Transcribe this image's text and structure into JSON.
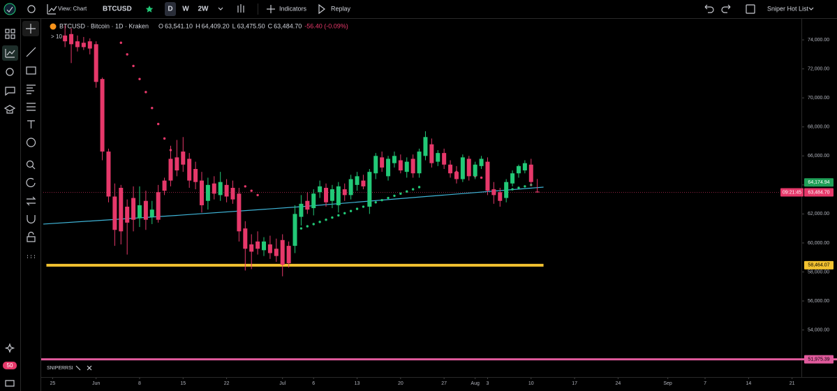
{
  "toolbar": {
    "view": "View: Chart",
    "symbol": "BTCUSD",
    "intervals": [
      "D",
      "W",
      "2W"
    ],
    "indicators": "Indicators",
    "replay": "Replay",
    "watchlist": "Sniper Hot List"
  },
  "sidebar": {
    "badge": "50"
  },
  "legend": {
    "title": "BTCUSD · Bitcoin · 1D · Kraken",
    "collapse": "10",
    "ohlc": [
      {
        "key": "O",
        "value": "63,541.10"
      },
      {
        "key": "H",
        "value": "64,409.20"
      },
      {
        "key": "L",
        "value": "63,475.50"
      },
      {
        "key": "C",
        "value": "63,484.70"
      }
    ],
    "change": "-56.40 (-0.09%)"
  },
  "pane": {
    "title": "SNIPERRSI"
  },
  "chart_data": {
    "type": "candlestick",
    "up_color": "#22c977",
    "down_color": "#e6386a",
    "x": [
      2,
      3,
      4,
      5,
      6,
      7,
      8,
      9,
      10,
      11,
      12,
      13,
      14,
      15,
      16,
      17,
      18,
      19,
      20,
      21,
      22,
      23,
      24,
      25,
      26,
      27,
      28,
      29,
      30,
      31,
      32,
      33,
      34,
      35,
      36,
      37,
      38,
      39,
      40,
      41,
      42,
      43,
      44,
      45,
      46,
      47,
      48,
      49,
      50,
      51,
      52,
      53,
      54,
      55,
      56,
      57,
      58,
      59,
      60,
      61,
      62,
      63,
      64,
      65,
      66,
      67,
      68,
      69,
      70,
      71,
      72,
      73,
      74,
      75,
      76,
      77,
      78
    ],
    "open": [
      74300,
      74400,
      73900,
      73800,
      73900,
      73700,
      71300,
      66300,
      63200,
      63800,
      62500,
      63100,
      61700,
      62900,
      61800,
      63500,
      64300,
      65800,
      65900,
      66300,
      65800,
      65100,
      64300,
      62900,
      64100,
      63300,
      64000,
      63800,
      63400,
      61000,
      59900,
      60100,
      59500,
      59900,
      59600,
      60200,
      59800,
      59800,
      61800,
      62900,
      62400,
      63500,
      63800,
      62900,
      62600,
      63700,
      63300,
      64000,
      64300,
      62500,
      64800,
      65900,
      64600,
      65500,
      65700,
      64900,
      65800,
      64800,
      66000,
      66800,
      65600,
      66200,
      65400,
      64900,
      64400,
      65800,
      64600,
      65300,
      65600,
      63700,
      63500,
      63100,
      64100,
      64800,
      65000,
      65400,
      63541.1
    ],
    "high": [
      75000,
      74800,
      74300,
      74200,
      74100,
      73900,
      71400,
      66500,
      64100,
      64000,
      63000,
      63900,
      63900,
      63600,
      62900,
      64000,
      64500,
      66700,
      67100,
      67300,
      66200,
      65600,
      64900,
      64500,
      64600,
      64900,
      64400,
      64300,
      63800,
      61500,
      60600,
      60800,
      60400,
      60500,
      60300,
      60600,
      60100,
      62600,
      63300,
      63500,
      63700,
      64300,
      64100,
      64000,
      64200,
      64100,
      64700,
      64900,
      64700,
      65100,
      66200,
      66300,
      66000,
      66300,
      66100,
      65900,
      66100,
      66500,
      67700,
      67200,
      66400,
      66500,
      65700,
      65300,
      66100,
      66000,
      65600,
      66000,
      65900,
      64200,
      63800,
      64400,
      65000,
      65400,
      65700,
      65800,
      64409.2
    ],
    "low": [
      73500,
      72400,
      73200,
      73300,
      73000,
      70700,
      65700,
      62800,
      59800,
      59900,
      59200,
      60800,
      61100,
      60900,
      61300,
      61400,
      63300,
      63900,
      64600,
      64900,
      63800,
      63700,
      62100,
      62300,
      63000,
      62900,
      62800,
      62700,
      60100,
      58100,
      58200,
      59200,
      59100,
      58900,
      58700,
      57700,
      58300,
      59300,
      61200,
      62000,
      61900,
      63100,
      62500,
      62400,
      62100,
      62900,
      63000,
      63600,
      63700,
      62000,
      64400,
      64900,
      64300,
      65200,
      64800,
      64500,
      64500,
      64500,
      65700,
      65200,
      65300,
      65100,
      64500,
      64100,
      64200,
      64300,
      64400,
      65100,
      63300,
      62700,
      62500,
      62800,
      63900,
      64500,
      64800,
      63900,
      63475.5
    ],
    "close": [
      73900,
      73700,
      73500,
      73500,
      73400,
      71100,
      66300,
      63200,
      60900,
      60800,
      61400,
      61600,
      62600,
      61600,
      62300,
      61600,
      63600,
      64300,
      65000,
      65400,
      64300,
      64200,
      62600,
      64000,
      63400,
      64200,
      63200,
      63000,
      60800,
      59600,
      59400,
      59600,
      60100,
      59300,
      59100,
      58500,
      58600,
      62000,
      62700,
      62300,
      63400,
      63900,
      62800,
      63700,
      63900,
      63300,
      64400,
      64600,
      63900,
      64900,
      66000,
      65200,
      65800,
      66000,
      65000,
      65600,
      64800,
      66300,
      67300,
      65500,
      66200,
      65400,
      64800,
      64400,
      65900,
      64600,
      65400,
      65800,
      63600,
      63300,
      62900,
      64200,
      64800,
      65300,
      65500,
      64200,
      63484.7
    ],
    "overlays": [
      {
        "type": "line",
        "color": "#3fb5d8",
        "x": [
          -1.5,
          20,
          40,
          60,
          79
        ],
        "values": [
          61300,
          61900,
          62500,
          63200,
          63850
        ]
      },
      {
        "type": "scatter",
        "color": "#e6386a",
        "x": [
          11,
          12,
          13,
          14,
          15,
          16,
          17,
          18,
          19,
          31,
          32,
          33,
          64,
          65,
          66,
          67,
          68,
          69
        ],
        "values": [
          73800,
          73000,
          72200,
          71300,
          70400,
          69300,
          68200,
          67200,
          66400,
          63900,
          63600,
          63300,
          65000,
          64900,
          64800,
          64700,
          64600,
          64500
        ]
      },
      {
        "type": "scatter",
        "color": "#22c977",
        "x": [
          40,
          41,
          42,
          43,
          44,
          45,
          46,
          47,
          48,
          49,
          50,
          51,
          52,
          53,
          54,
          55,
          56,
          57,
          58,
          59,
          74,
          75,
          76,
          77
        ],
        "values": [
          61000,
          61150,
          61300,
          61450,
          61600,
          61750,
          61900,
          62050,
          62200,
          62350,
          62500,
          62650,
          62800,
          62950,
          63100,
          63250,
          63400,
          63550,
          63700,
          63850,
          63700,
          63800,
          63900,
          64000
        ]
      }
    ],
    "levels": [
      {
        "value": 58464.07,
        "label": "58,464.07",
        "color": "#f2c230",
        "x_range": [
          -1,
          79
        ]
      },
      {
        "value": 51975.39,
        "label": "51,975.39",
        "color": "#e05a9c"
      }
    ],
    "price_labels": [
      {
        "value": 64174.94,
        "label": "64,174.94",
        "color": "#1f9f57"
      }
    ],
    "last_price": {
      "value": 63484.7,
      "label": "63,484.70",
      "countdown": "09:21:45",
      "color": "#e6386a"
    },
    "xlim": [
      -1.5,
      120.5
    ],
    "ylim": [
      51960,
      75400
    ],
    "xticks": [
      {
        "value": 0,
        "label": "25"
      },
      {
        "value": 7,
        "label": "Jun"
      },
      {
        "value": 14,
        "label": "8"
      },
      {
        "value": 21,
        "label": "15"
      },
      {
        "value": 28,
        "label": "22"
      },
      {
        "value": 37,
        "label": "Jul"
      },
      {
        "value": 42,
        "label": "6"
      },
      {
        "value": 49,
        "label": "13"
      },
      {
        "value": 56,
        "label": "20"
      },
      {
        "value": 63,
        "label": "27"
      },
      {
        "value": 68,
        "label": "Aug"
      },
      {
        "value": 70,
        "label": "3"
      },
      {
        "value": 77,
        "label": "10"
      },
      {
        "value": 84,
        "label": "17"
      },
      {
        "value": 91,
        "label": "24"
      },
      {
        "value": 99,
        "label": "Sep"
      },
      {
        "value": 105,
        "label": "7"
      },
      {
        "value": 112,
        "label": "14"
      },
      {
        "value": 119,
        "label": "21"
      }
    ],
    "yticks": [
      {
        "value": 54000,
        "label": "54,000.00"
      },
      {
        "value": 56000,
        "label": "56,000.00"
      },
      {
        "value": 58000,
        "label": "58,000.00"
      },
      {
        "value": 60000,
        "label": "60,000.00"
      },
      {
        "value": 62000,
        "label": "62,000.00"
      },
      {
        "value": 64000,
        "label": "64,000.00"
      },
      {
        "value": 66000,
        "label": "66,000.00"
      },
      {
        "value": 68000,
        "label": "68,000.00"
      },
      {
        "value": 70000,
        "label": "70,000.00"
      },
      {
        "value": 72000,
        "label": "72,000.00"
      },
      {
        "value": 74000,
        "label": "74,000.00"
      }
    ]
  }
}
